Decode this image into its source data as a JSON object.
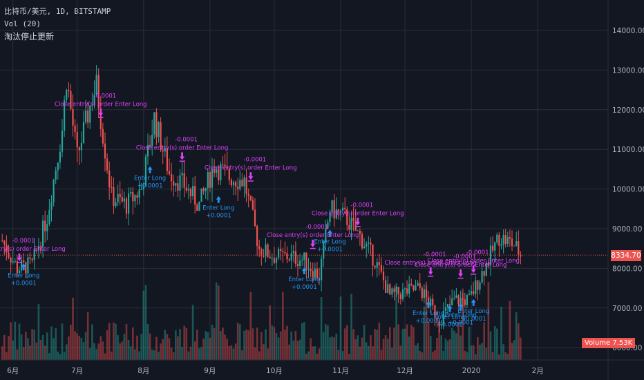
{
  "header": {
    "symbol_line": "比特币/美元, 1D, BITSTAMP",
    "indicator_line": "Vol (20)",
    "note_line": "淘汰停止更新"
  },
  "price_tag": "8334.70",
  "volume_tag": {
    "label": "Volume",
    "value": "7.53K"
  },
  "colors": {
    "up": "#26a69a",
    "down": "#ef5350",
    "buy": "#2196f3",
    "sell": "#e040fb",
    "grid": "#2a2e39",
    "bg": "#131722"
  },
  "chart_data": {
    "type": "candlestick",
    "title": "",
    "ylim": [
      6000,
      14500
    ],
    "yticks": [
      "14000.00",
      "13000.00",
      "12000.00",
      "11000.00",
      "10000.00",
      "9000.00",
      "8000.00",
      "7000.00",
      "6000.00"
    ],
    "xticks": [
      "6月",
      "7月",
      "8月",
      "9月",
      "10月",
      "11月",
      "12月",
      "2020",
      "2月"
    ],
    "grid": true,
    "last_price": 8334.7,
    "prices": [
      {
        "x": "2019-05-27",
        "y": 8700
      },
      {
        "x": "2019-06-03",
        "y": 8000
      },
      {
        "x": "2019-06-10",
        "y": 8100
      },
      {
        "x": "2019-06-17",
        "y": 9300
      },
      {
        "x": "2019-06-24",
        "y": 11500
      },
      {
        "x": "2019-06-26",
        "y": 12800
      },
      {
        "x": "2019-07-01",
        "y": 10800
      },
      {
        "x": "2019-07-08",
        "y": 12300
      },
      {
        "x": "2019-07-10",
        "y": 12600
      },
      {
        "x": "2019-07-17",
        "y": 9800
      },
      {
        "x": "2019-07-24",
        "y": 9600
      },
      {
        "x": "2019-07-31",
        "y": 10000
      },
      {
        "x": "2019-08-06",
        "y": 11800
      },
      {
        "x": "2019-08-13",
        "y": 10400
      },
      {
        "x": "2019-08-20",
        "y": 10100
      },
      {
        "x": "2019-08-27",
        "y": 9600
      },
      {
        "x": "2019-09-03",
        "y": 10600
      },
      {
        "x": "2019-09-10",
        "y": 10300
      },
      {
        "x": "2019-09-17",
        "y": 10200
      },
      {
        "x": "2019-09-24",
        "y": 8500
      },
      {
        "x": "2019-10-01",
        "y": 8300
      },
      {
        "x": "2019-10-08",
        "y": 8300
      },
      {
        "x": "2019-10-15",
        "y": 8200
      },
      {
        "x": "2019-10-22",
        "y": 7800
      },
      {
        "x": "2019-10-27",
        "y": 9500
      },
      {
        "x": "2019-11-03",
        "y": 9300
      },
      {
        "x": "2019-11-10",
        "y": 8800
      },
      {
        "x": "2019-11-17",
        "y": 8200
      },
      {
        "x": "2019-11-24",
        "y": 7300
      },
      {
        "x": "2019-12-01",
        "y": 7400
      },
      {
        "x": "2019-12-08",
        "y": 7500
      },
      {
        "x": "2019-12-17",
        "y": 6700
      },
      {
        "x": "2019-12-24",
        "y": 7200
      },
      {
        "x": "2019-12-31",
        "y": 7200
      },
      {
        "x": "2020-01-07",
        "y": 8000
      },
      {
        "x": "2020-01-14",
        "y": 8800
      },
      {
        "x": "2020-01-21",
        "y": 8600
      },
      {
        "x": "2020-01-24",
        "y": 8334.7
      }
    ],
    "buy_signals": [
      {
        "x": "2019-06-06",
        "y": 7950,
        "label": "Enter Long",
        "value": "+0.0001"
      },
      {
        "x": "2019-08-04",
        "y": 10400,
        "label": "Enter Long",
        "value": "+0.0001"
      },
      {
        "x": "2019-09-05",
        "y": 9650,
        "label": "Enter Long",
        "value": "+0.0001"
      },
      {
        "x": "2019-10-15",
        "y": 7850,
        "label": "Enter Long",
        "value": "+0.0001"
      },
      {
        "x": "2019-10-27",
        "y": 8800,
        "label": "Enter Long",
        "value": "+0.0001"
      },
      {
        "x": "2019-12-12",
        "y": 7000,
        "label": "Enter Long",
        "value": "+0.0001"
      },
      {
        "x": "2019-12-22",
        "y": 6900,
        "label": "Enter Long",
        "value": "+0.0001"
      },
      {
        "x": "2019-12-27",
        "y": 6950,
        "label": "Enter Long",
        "value": "+0.0001"
      },
      {
        "x": "2020-01-02",
        "y": 7050,
        "label": "Enter Long",
        "value": "+0.0001"
      }
    ],
    "sell_signals": [
      {
        "x": "2019-06-04",
        "y": 8200,
        "label": "Close entry(s) order Enter Long",
        "value": "-0.0001"
      },
      {
        "x": "2019-07-12",
        "y": 11850,
        "label": "Close entry(s) order Enter Long",
        "value": "-0.0001"
      },
      {
        "x": "2019-08-19",
        "y": 10750,
        "label": "Close entry(s) order Enter Long",
        "value": "-0.0001"
      },
      {
        "x": "2019-09-20",
        "y": 10250,
        "label": "Close entry(s) order Enter Long",
        "value": "-0.0001"
      },
      {
        "x": "2019-10-19",
        "y": 8550,
        "label": "Close entry(s) order Enter Long",
        "value": "-0.0001"
      },
      {
        "x": "2019-11-09",
        "y": 9100,
        "label": "Close entry(s) order Enter Long",
        "value": "-0.0001"
      },
      {
        "x": "2019-12-13",
        "y": 7850,
        "label": "Close entry(s) order Enter Long",
        "value": "-0.0001"
      },
      {
        "x": "2019-12-27",
        "y": 7800,
        "label": "Close entry(s) order Enter Long",
        "value": "-0.0001"
      },
      {
        "x": "2020-01-02",
        "y": 7900,
        "label": "Close entry(s) order Enter Long",
        "value": "-0.0001"
      }
    ],
    "volume_last": "7.53K"
  }
}
